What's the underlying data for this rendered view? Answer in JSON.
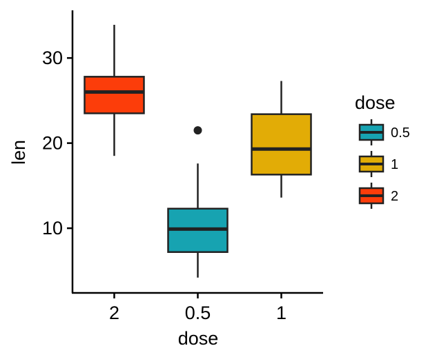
{
  "chart_data": {
    "type": "boxplot",
    "title": "",
    "xlabel": "dose",
    "ylabel": "len",
    "ylim": [
      2.4,
      35.6
    ],
    "yticks": [
      10,
      20,
      30
    ],
    "grid": false,
    "legend_placement": "right",
    "categories": [
      "2",
      "0.5",
      "1"
    ],
    "boxes": [
      {
        "category": "2",
        "min": 18.5,
        "q1": 23.5,
        "median": 26.0,
        "q3": 27.8,
        "max": 33.9,
        "outliers": [],
        "color": "#FC3D0A"
      },
      {
        "category": "0.5",
        "min": 4.2,
        "q1": 7.2,
        "median": 9.9,
        "q3": 12.3,
        "max": 17.6,
        "outliers": [
          21.5
        ],
        "color": "#17A3B1"
      },
      {
        "category": "1",
        "min": 13.6,
        "q1": 16.3,
        "median": 19.3,
        "q3": 23.4,
        "max": 27.3,
        "outliers": [],
        "color": "#E2AC06"
      }
    ],
    "legend": {
      "title": "dose",
      "items": [
        {
          "label": "0.5",
          "color": "#17A3B1"
        },
        {
          "label": "1",
          "color": "#E2AC06"
        },
        {
          "label": "2",
          "color": "#FC3D0A"
        }
      ]
    }
  }
}
